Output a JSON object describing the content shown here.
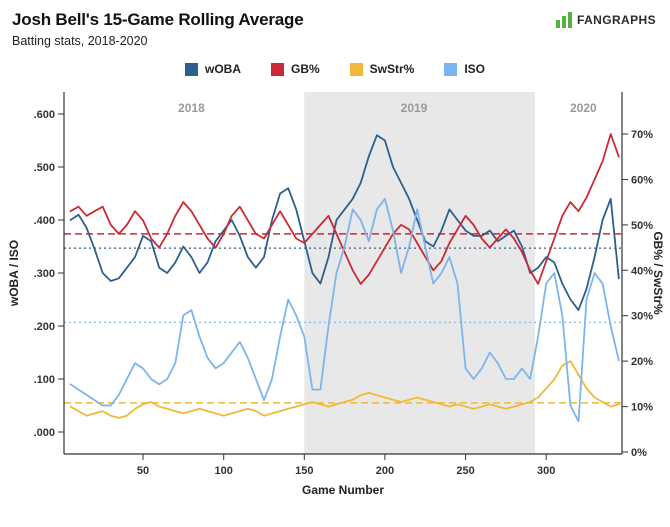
{
  "header": {
    "title": "Josh Bell's 15-Game Rolling Average",
    "subtitle": "Batting stats, 2018-2020",
    "brand": "FANGRAPHS",
    "brand_green": "#52b043"
  },
  "legend": [
    {
      "label": "wOBA",
      "color": "#2d5f8d"
    },
    {
      "label": "GB%",
      "color": "#cc2936"
    },
    {
      "label": "SwStr%",
      "color": "#f0b939"
    },
    {
      "label": "ISO",
      "color": "#7cb5ec"
    }
  ],
  "chart_data": {
    "type": "line",
    "title": "Josh Bell's 15-Game Rolling Average",
    "xlabel": "Game Number",
    "ylabel_left": "wOBA / ISO",
    "ylabel_right": "GB% / SwStr%",
    "xlim": [
      1,
      347
    ],
    "left_ylim": [
      0,
      0.62
    ],
    "right_ylim": [
      0,
      73.5
    ],
    "grid": false,
    "legend_position": "top",
    "x_ticks": [
      50,
      100,
      150,
      200,
      250,
      300
    ],
    "left_ticks": [
      {
        "label": ".000",
        "value": 0.0
      },
      {
        "label": ".100",
        "value": 0.1
      },
      {
        "label": ".200",
        "value": 0.2
      },
      {
        "label": ".300",
        "value": 0.3
      },
      {
        "label": ".400",
        "value": 0.4
      },
      {
        "label": ".500",
        "value": 0.5
      },
      {
        "label": ".600",
        "value": 0.6
      }
    ],
    "right_ticks": [
      {
        "label": "0%",
        "value": 0
      },
      {
        "label": "10%",
        "value": 10
      },
      {
        "label": "20%",
        "value": 20
      },
      {
        "label": "30%",
        "value": 30
      },
      {
        "label": "40%",
        "value": 40
      },
      {
        "label": "50%",
        "value": 50
      },
      {
        "label": "60%",
        "value": 60
      },
      {
        "label": "70%",
        "value": 70
      }
    ],
    "shaded_region": {
      "x0": 150,
      "x1": 293,
      "color": "#e8e8e8",
      "label": "2019"
    },
    "year_labels": [
      {
        "label": "2018",
        "x": 80
      },
      {
        "label": "2019",
        "x": 218
      },
      {
        "label": "2020",
        "x": 323
      }
    ],
    "reference_lines": [
      {
        "series": "GB%",
        "axis": "right",
        "value": 48.0,
        "color": "#cc2936",
        "style": "dashed"
      },
      {
        "series": "wOBA",
        "axis": "left",
        "value": 0.347,
        "color": "#2d5f8d",
        "style": "dotted"
      },
      {
        "series": "ISO",
        "axis": "left",
        "value": 0.207,
        "color": "#7cb5ec",
        "style": "dotted"
      },
      {
        "series": "SwStr%",
        "axis": "right",
        "value": 10.8,
        "color": "#f0b939",
        "style": "dashed"
      }
    ],
    "x": [
      5,
      10,
      15,
      20,
      25,
      30,
      35,
      40,
      45,
      50,
      55,
      60,
      65,
      70,
      75,
      80,
      85,
      90,
      95,
      100,
      105,
      110,
      115,
      120,
      125,
      130,
      135,
      140,
      145,
      150,
      155,
      160,
      165,
      170,
      175,
      180,
      185,
      190,
      195,
      200,
      205,
      210,
      215,
      220,
      225,
      230,
      235,
      240,
      245,
      250,
      255,
      260,
      265,
      270,
      275,
      280,
      285,
      290,
      295,
      300,
      305,
      310,
      315,
      320,
      325,
      330,
      335,
      340,
      345
    ],
    "series": [
      {
        "name": "wOBA",
        "axis": "left",
        "color": "#2d5f8d",
        "values": [
          0.4,
          0.41,
          0.385,
          0.345,
          0.3,
          0.285,
          0.29,
          0.31,
          0.33,
          0.37,
          0.36,
          0.31,
          0.3,
          0.32,
          0.35,
          0.33,
          0.3,
          0.32,
          0.36,
          0.38,
          0.4,
          0.37,
          0.33,
          0.31,
          0.33,
          0.4,
          0.45,
          0.46,
          0.42,
          0.36,
          0.3,
          0.28,
          0.33,
          0.4,
          0.42,
          0.44,
          0.47,
          0.52,
          0.56,
          0.55,
          0.5,
          0.47,
          0.44,
          0.4,
          0.36,
          0.35,
          0.38,
          0.42,
          0.4,
          0.38,
          0.37,
          0.37,
          0.38,
          0.36,
          0.37,
          0.38,
          0.35,
          0.3,
          0.31,
          0.33,
          0.32,
          0.28,
          0.25,
          0.23,
          0.27,
          0.33,
          0.4,
          0.44,
          0.29
        ]
      },
      {
        "name": "GB%",
        "axis": "right",
        "color": "#cc2936",
        "values": [
          53,
          54,
          52,
          53,
          54,
          50,
          48,
          50,
          53,
          51,
          47,
          45,
          48,
          52,
          55,
          53,
          50,
          47,
          45,
          48,
          52,
          54,
          51,
          48,
          47,
          50,
          53,
          50,
          47,
          46,
          48,
          50,
          52,
          48,
          44,
          40,
          37,
          39,
          42,
          45,
          48,
          50,
          49,
          46,
          43,
          40,
          42,
          46,
          49,
          52,
          50,
          47,
          45,
          47,
          49,
          47,
          44,
          40,
          37,
          42,
          47,
          52,
          55,
          53,
          56,
          60,
          64,
          70,
          65
        ]
      },
      {
        "name": "SwStr%",
        "axis": "right",
        "color": "#f0b939",
        "values": [
          10,
          9,
          8,
          8.5,
          9,
          8,
          7.5,
          8,
          9.5,
          10.5,
          11,
          10,
          9.5,
          9,
          8.5,
          9,
          9.5,
          9,
          8.5,
          8,
          8.5,
          9,
          9.5,
          9,
          8,
          8.5,
          9,
          9.5,
          10,
          10.5,
          11,
          10.5,
          10,
          10.5,
          11,
          11.5,
          12.5,
          13,
          12.5,
          12,
          11.5,
          11,
          11.5,
          12,
          11.5,
          11,
          10.5,
          10,
          10.5,
          10,
          9.5,
          10,
          10.5,
          10,
          9.5,
          10,
          10.5,
          11,
          12,
          14,
          16,
          19,
          20,
          17,
          14,
          12,
          11,
          10,
          10.5
        ]
      },
      {
        "name": "ISO",
        "axis": "left",
        "color": "#7cb5ec",
        "values": [
          0.09,
          0.08,
          0.07,
          0.06,
          0.05,
          0.05,
          0.07,
          0.1,
          0.13,
          0.12,
          0.1,
          0.09,
          0.1,
          0.13,
          0.22,
          0.23,
          0.18,
          0.14,
          0.12,
          0.13,
          0.15,
          0.17,
          0.14,
          0.1,
          0.06,
          0.1,
          0.18,
          0.25,
          0.22,
          0.18,
          0.08,
          0.08,
          0.2,
          0.3,
          0.35,
          0.42,
          0.4,
          0.36,
          0.42,
          0.44,
          0.38,
          0.3,
          0.35,
          0.42,
          0.35,
          0.28,
          0.3,
          0.33,
          0.28,
          0.12,
          0.1,
          0.12,
          0.15,
          0.13,
          0.1,
          0.1,
          0.12,
          0.1,
          0.18,
          0.28,
          0.3,
          0.22,
          0.05,
          0.02,
          0.25,
          0.3,
          0.28,
          0.2,
          0.135
        ]
      }
    ]
  }
}
